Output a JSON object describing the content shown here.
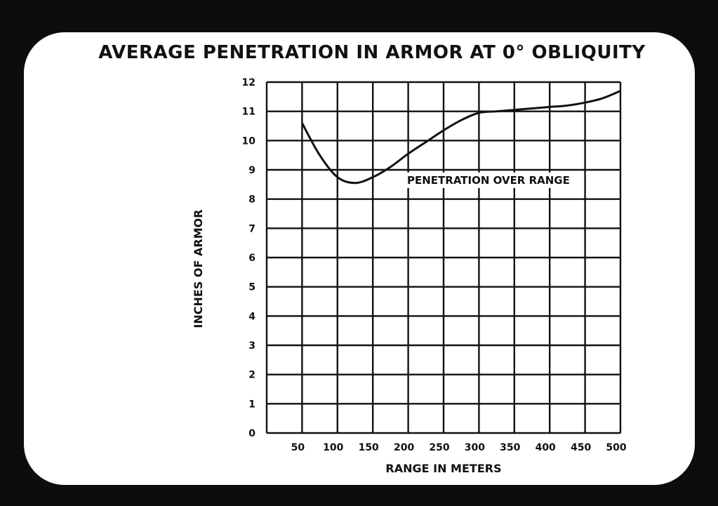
{
  "chart_data": {
    "type": "line",
    "title": "AVERAGE PENETRATION IN ARMOR AT 0° OBLIQUITY",
    "xlabel": "RANGE IN METERS",
    "ylabel": "INCHES OF ARMOR",
    "x_ticks": [
      50,
      100,
      150,
      200,
      250,
      300,
      350,
      400,
      450,
      500
    ],
    "y_ticks": [
      0,
      1,
      2,
      3,
      4,
      5,
      6,
      7,
      8,
      9,
      10,
      11,
      12
    ],
    "xlim": [
      0,
      500
    ],
    "ylim": [
      0,
      12
    ],
    "grid": true,
    "series": [
      {
        "name": "PENETRATION OVER RANGE",
        "x": [
          50,
          75,
          100,
          125,
          150,
          175,
          200,
          225,
          250,
          275,
          300,
          325,
          350,
          375,
          400,
          425,
          450,
          475,
          500
        ],
        "y": [
          10.6,
          9.5,
          8.75,
          8.55,
          8.75,
          9.1,
          9.55,
          9.95,
          10.35,
          10.7,
          10.95,
          11.0,
          11.05,
          11.1,
          11.15,
          11.2,
          11.3,
          11.45,
          11.7
        ]
      }
    ],
    "annotation": {
      "text": "PENETRATION OVER RANGE",
      "x": 250,
      "y": 8.5
    }
  },
  "colors": {
    "frame": "#0d0d0d",
    "panel": "#ffffff",
    "ink": "#111111"
  }
}
